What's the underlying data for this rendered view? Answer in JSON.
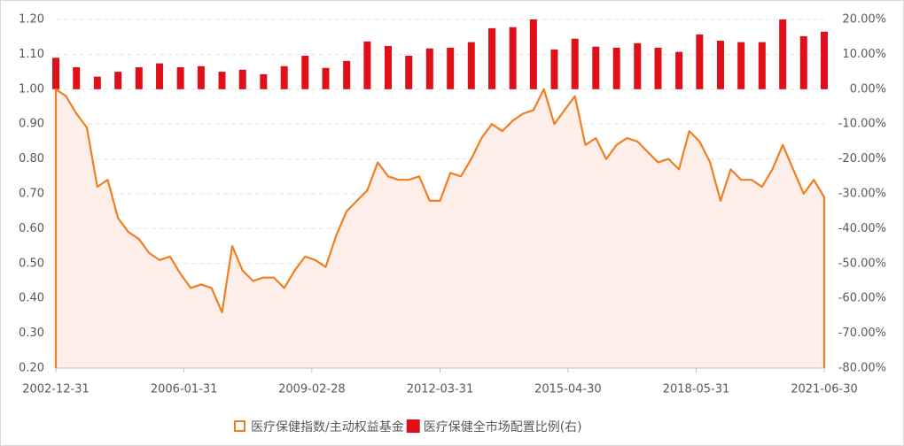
{
  "chart_data": {
    "type": "bar-area-combo",
    "grid": true,
    "ylim": [
      0.2,
      1.2
    ],
    "yticks": [
      {
        "value": 0.2,
        "label": "0.20"
      },
      {
        "value": 0.3,
        "label": "0.30"
      },
      {
        "value": 0.4,
        "label": "0.40"
      },
      {
        "value": 0.5,
        "label": "0.50"
      },
      {
        "value": 0.6,
        "label": "0.60"
      },
      {
        "value": 0.7,
        "label": "0.70"
      },
      {
        "value": 0.8,
        "label": "0.80"
      },
      {
        "value": 0.9,
        "label": "0.90"
      },
      {
        "value": 1.0,
        "label": "1.00"
      },
      {
        "value": 1.1,
        "label": "1.10"
      },
      {
        "value": 1.2,
        "label": "1.20"
      }
    ],
    "y2lim": [
      -80,
      20
    ],
    "y2ticks": [
      {
        "value": -80,
        "label": "-80.00%"
      },
      {
        "value": -70,
        "label": "-70.00%"
      },
      {
        "value": -60,
        "label": "-60.00%"
      },
      {
        "value": -50,
        "label": "-50.00%"
      },
      {
        "value": -40,
        "label": "-40.00%"
      },
      {
        "value": -30,
        "label": "-30.00%"
      },
      {
        "value": -20,
        "label": "-20.00%"
      },
      {
        "value": -10,
        "label": "-10.00%"
      },
      {
        "value": 0,
        "label": "0.00%"
      },
      {
        "value": 10,
        "label": "10.00%"
      },
      {
        "value": 20,
        "label": "20.00%"
      }
    ],
    "xlim": [
      "2002-12-31",
      "2021-06-30"
    ],
    "xticks": [
      "2002-12-31",
      "2006-01-31",
      "2009-02-28",
      "2012-03-31",
      "2015-04-30",
      "2018-05-31",
      "2021-06-30"
    ],
    "series": [
      {
        "name": "医疗保健指数/主动权益基金",
        "type": "area",
        "axis": "y",
        "color": "#f07f21",
        "fill": "#fdeeea",
        "x": [
          "2002-12-31",
          "2003-03-31",
          "2003-06-30",
          "2003-09-30",
          "2003-12-31",
          "2004-03-31",
          "2004-06-30",
          "2004-09-30",
          "2004-12-31",
          "2005-03-31",
          "2005-06-30",
          "2005-09-30",
          "2005-12-31",
          "2006-03-31",
          "2006-06-30",
          "2006-09-30",
          "2006-12-31",
          "2007-03-31",
          "2007-06-30",
          "2007-09-30",
          "2007-12-31",
          "2008-03-31",
          "2008-06-30",
          "2008-09-30",
          "2008-12-31",
          "2009-03-31",
          "2009-06-30",
          "2009-09-30",
          "2009-12-31",
          "2010-03-31",
          "2010-06-30",
          "2010-09-30",
          "2010-12-31",
          "2011-03-31",
          "2011-06-30",
          "2011-09-30",
          "2011-12-31",
          "2012-03-31",
          "2012-06-30",
          "2012-09-30",
          "2012-12-31",
          "2013-03-31",
          "2013-06-30",
          "2013-09-30",
          "2013-12-31",
          "2014-03-31",
          "2014-06-30",
          "2014-09-30",
          "2014-12-31",
          "2015-03-31",
          "2015-06-30",
          "2015-09-30",
          "2015-12-31",
          "2016-03-31",
          "2016-06-30",
          "2016-09-30",
          "2016-12-31",
          "2017-03-31",
          "2017-06-30",
          "2017-09-30",
          "2017-12-31",
          "2018-03-31",
          "2018-06-30",
          "2018-09-30",
          "2018-12-31",
          "2019-03-31",
          "2019-06-30",
          "2019-09-30",
          "2019-12-31",
          "2020-03-31",
          "2020-06-30",
          "2020-09-30",
          "2020-12-31",
          "2021-03-31",
          "2021-06-30"
        ],
        "values": [
          1.0,
          0.98,
          0.93,
          0.89,
          0.72,
          0.74,
          0.63,
          0.59,
          0.57,
          0.53,
          0.51,
          0.52,
          0.47,
          0.43,
          0.44,
          0.43,
          0.36,
          0.55,
          0.48,
          0.45,
          0.46,
          0.46,
          0.43,
          0.48,
          0.52,
          0.51,
          0.49,
          0.58,
          0.65,
          0.68,
          0.71,
          0.79,
          0.75,
          0.74,
          0.74,
          0.75,
          0.68,
          0.68,
          0.76,
          0.75,
          0.8,
          0.86,
          0.9,
          0.88,
          0.91,
          0.93,
          0.94,
          1.0,
          0.9,
          0.94,
          0.98,
          0.84,
          0.86,
          0.8,
          0.84,
          0.86,
          0.85,
          0.82,
          0.79,
          0.8,
          0.77,
          0.88,
          0.85,
          0.79,
          0.68,
          0.77,
          0.74,
          0.74,
          0.72,
          0.77,
          0.84,
          0.77,
          0.7,
          0.74,
          0.69
        ]
      },
      {
        "name": "医疗保健全市场配置比例(右)",
        "type": "bar",
        "axis": "y2",
        "color": "#e0101a",
        "x": [
          "2002-12-31",
          "2003-06-30",
          "2003-12-31",
          "2004-06-30",
          "2004-12-31",
          "2005-06-30",
          "2005-12-31",
          "2006-06-30",
          "2006-12-31",
          "2007-06-30",
          "2007-12-31",
          "2008-06-30",
          "2008-12-31",
          "2009-06-30",
          "2009-12-31",
          "2010-06-30",
          "2010-12-31",
          "2011-06-30",
          "2011-12-31",
          "2012-06-30",
          "2012-12-31",
          "2013-06-30",
          "2013-12-31",
          "2014-06-30",
          "2014-12-31",
          "2015-06-30",
          "2015-12-31",
          "2016-06-30",
          "2016-12-31",
          "2017-06-30",
          "2017-12-31",
          "2018-06-30",
          "2018-12-31",
          "2019-06-30",
          "2019-12-31",
          "2020-06-30",
          "2020-12-31",
          "2021-06-30"
        ],
        "values": [
          9.0,
          6.3,
          3.6,
          5.0,
          6.3,
          7.4,
          6.3,
          6.6,
          5.0,
          5.6,
          4.3,
          6.6,
          9.6,
          6.1,
          8.1,
          13.7,
          12.4,
          9.6,
          11.7,
          11.9,
          13.5,
          17.5,
          17.8,
          20.0,
          11.4,
          14.5,
          12.2,
          11.9,
          13.2,
          11.9,
          10.7,
          15.7,
          13.9,
          13.5,
          13.5,
          20.0,
          15.2,
          16.5
        ]
      }
    ]
  }
}
